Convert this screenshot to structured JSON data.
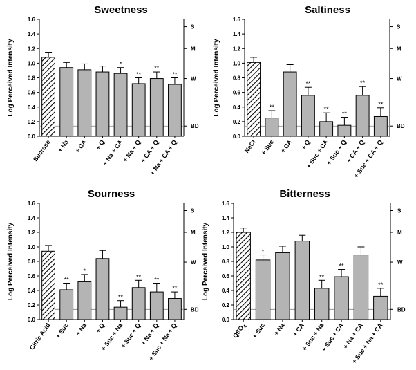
{
  "chart_data": [
    {
      "type": "bar",
      "title": "Sweetness",
      "ylabel": "Log Perceived Intensity",
      "ylim": [
        0,
        1.6
      ],
      "yticks": [
        "0.0",
        "0.2",
        "0.4",
        "0.6",
        "0.8",
        "1.0",
        "1.2",
        "1.4",
        "1.6"
      ],
      "categories": [
        "Sucrose",
        "+ Na",
        "+ CA",
        "+ Q",
        "+ Na + CA",
        "+ Na + Q",
        "+ CA + Q",
        "+ Na + CA + Q"
      ],
      "values": [
        1.08,
        0.94,
        0.91,
        0.88,
        0.86,
        0.72,
        0.79,
        0.71
      ],
      "errors": [
        0.07,
        0.07,
        0.08,
        0.08,
        0.08,
        0.08,
        0.09,
        0.09
      ],
      "significance": [
        "",
        "",
        "",
        "",
        "*",
        "**",
        "**",
        "**"
      ],
      "reference_labels": [
        {
          "label": "S",
          "value": 1.5
        },
        {
          "label": "M",
          "value": 1.2
        },
        {
          "label": "W",
          "value": 0.79
        },
        {
          "label": "BD",
          "value": 0.14
        }
      ],
      "hatched_first_bar": true
    },
    {
      "type": "bar",
      "title": "Saltiness",
      "ylabel": "Log Perceived Intensity",
      "ylim": [
        0,
        1.6
      ],
      "yticks": [
        "0.0",
        "0.2",
        "0.4",
        "0.6",
        "0.8",
        "1.0",
        "1.2",
        "1.4",
        "1.6"
      ],
      "categories": [
        "NaCl",
        "+ Suc",
        "+ CA",
        "+ Q",
        "+ Suc + CA",
        "+ Suc + Q",
        "+ CA + Q",
        "+ Suc + CA + Q"
      ],
      "values": [
        1.01,
        0.25,
        0.88,
        0.56,
        0.2,
        0.15,
        0.56,
        0.27
      ],
      "errors": [
        0.07,
        0.1,
        0.1,
        0.11,
        0.12,
        0.11,
        0.12,
        0.12
      ],
      "significance": [
        "",
        "**",
        "",
        "**",
        "**",
        "**",
        "**",
        "**"
      ],
      "reference_labels": [
        {
          "label": "S",
          "value": 1.5
        },
        {
          "label": "M",
          "value": 1.2
        },
        {
          "label": "W",
          "value": 0.79
        },
        {
          "label": "BD",
          "value": 0.14
        }
      ],
      "hatched_first_bar": true
    },
    {
      "type": "bar",
      "title": "Sourness",
      "ylabel": "Log Perceived Intensity",
      "ylim": [
        0,
        1.6
      ],
      "yticks": [
        "0.0",
        "0.2",
        "0.4",
        "0.6",
        "0.8",
        "1.0",
        "1.2",
        "1.4",
        "1.6"
      ],
      "categories": [
        "Citric Acid",
        "+ Suc",
        "+ Na",
        "+ Q",
        "+ Suc + Na",
        "+ Suc + Q",
        "+ Na + Q",
        "+ Suc + Na + Q"
      ],
      "values": [
        0.94,
        0.41,
        0.52,
        0.84,
        0.17,
        0.44,
        0.38,
        0.29
      ],
      "errors": [
        0.08,
        0.09,
        0.1,
        0.11,
        0.09,
        0.1,
        0.12,
        0.09
      ],
      "significance": [
        "",
        "**",
        "*",
        "",
        "**",
        "**",
        "**",
        "**"
      ],
      "reference_labels": [
        {
          "label": "S",
          "value": 1.5
        },
        {
          "label": "M",
          "value": 1.2
        },
        {
          "label": "W",
          "value": 0.79
        },
        {
          "label": "BD",
          "value": 0.14
        }
      ],
      "hatched_first_bar": true
    },
    {
      "type": "bar",
      "title": "Bitterness",
      "ylabel": "Log Perceived Intensity",
      "ylim": [
        0,
        1.6
      ],
      "yticks": [
        "0.0",
        "0.2",
        "0.4",
        "0.6",
        "0.8",
        "1.0",
        "1.2",
        "1.4",
        "1.6"
      ],
      "categories": [
        "QSO4",
        "+ Suc",
        "+ Na",
        "+ CA",
        "+ Suc + Na",
        "+ Suc + CA",
        "+ Na + CA",
        "+ Suc + Na + CA"
      ],
      "values": [
        1.2,
        0.82,
        0.92,
        1.08,
        0.43,
        0.59,
        0.89,
        0.32
      ],
      "errors": [
        0.06,
        0.07,
        0.09,
        0.08,
        0.11,
        0.1,
        0.11,
        0.11
      ],
      "significance": [
        "",
        "*",
        "",
        "",
        "**",
        "**",
        "",
        "**"
      ],
      "reference_labels": [
        {
          "label": "S",
          "value": 1.5
        },
        {
          "label": "M",
          "value": 1.2
        },
        {
          "label": "W",
          "value": 0.79
        },
        {
          "label": "BD",
          "value": 0.14
        }
      ],
      "hatched_first_bar": true
    }
  ],
  "colors": {
    "bar_fill": "#b4b4b4",
    "bar_stroke": "#000000",
    "axis": "#000000",
    "reference_line": "#888888",
    "background": "#ffffff"
  }
}
